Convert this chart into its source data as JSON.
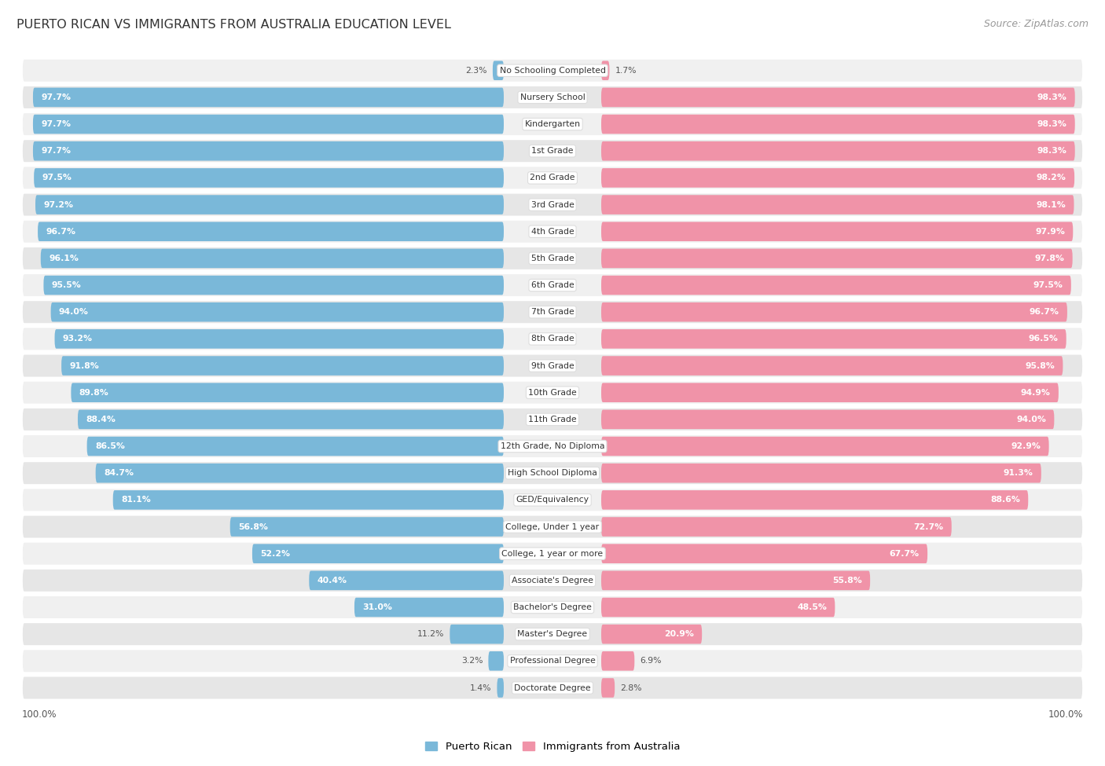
{
  "title": "PUERTO RICAN VS IMMIGRANTS FROM AUSTRALIA EDUCATION LEVEL",
  "source": "Source: ZipAtlas.com",
  "categories": [
    "No Schooling Completed",
    "Nursery School",
    "Kindergarten",
    "1st Grade",
    "2nd Grade",
    "3rd Grade",
    "4th Grade",
    "5th Grade",
    "6th Grade",
    "7th Grade",
    "8th Grade",
    "9th Grade",
    "10th Grade",
    "11th Grade",
    "12th Grade, No Diploma",
    "High School Diploma",
    "GED/Equivalency",
    "College, Under 1 year",
    "College, 1 year or more",
    "Associate's Degree",
    "Bachelor's Degree",
    "Master's Degree",
    "Professional Degree",
    "Doctorate Degree"
  ],
  "puerto_rican": [
    2.3,
    97.7,
    97.7,
    97.7,
    97.5,
    97.2,
    96.7,
    96.1,
    95.5,
    94.0,
    93.2,
    91.8,
    89.8,
    88.4,
    86.5,
    84.7,
    81.1,
    56.8,
    52.2,
    40.4,
    31.0,
    11.2,
    3.2,
    1.4
  ],
  "australia": [
    1.7,
    98.3,
    98.3,
    98.3,
    98.2,
    98.1,
    97.9,
    97.8,
    97.5,
    96.7,
    96.5,
    95.8,
    94.9,
    94.0,
    92.9,
    91.3,
    88.6,
    72.7,
    67.7,
    55.8,
    48.5,
    20.9,
    6.9,
    2.8
  ],
  "color_puerto_rican": "#7ab8d9",
  "color_australia": "#f093a8",
  "row_bg_light": "#f0f0f0",
  "row_bg_dark": "#e6e6e6",
  "background_color": "#ffffff",
  "legend_pr": "Puerto Rican",
  "legend_au": "Immigrants from Australia",
  "label_center_color": "#333333",
  "value_label_inside_color": "#ffffff",
  "value_label_outside_color": "#555555"
}
